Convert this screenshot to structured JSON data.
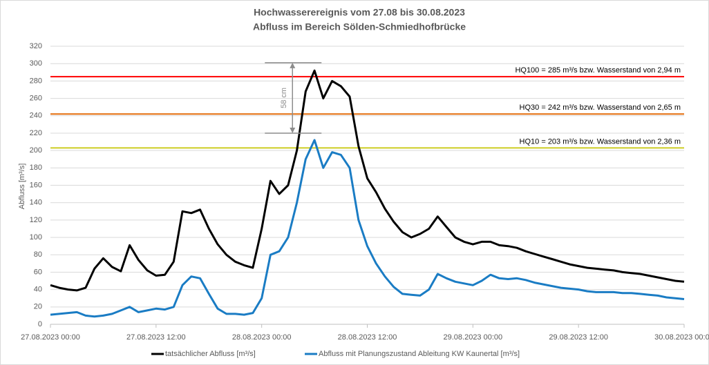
{
  "chart_data": {
    "type": "line",
    "title": "Hochwasserereignis vom 27.08 bis 30.08.2023",
    "subtitle": "Abfluss im Bereich Sölden-Schmiedhofbrücke",
    "ylabel": "Abfluss [m³/s]",
    "x": [
      "27.08.2023 00:00",
      "27.08.2023 01:00",
      "27.08.2023 02:00",
      "27.08.2023 03:00",
      "27.08.2023 04:00",
      "27.08.2023 05:00",
      "27.08.2023 06:00",
      "27.08.2023 07:00",
      "27.08.2023 08:00",
      "27.08.2023 09:00",
      "27.08.2023 10:00",
      "27.08.2023 11:00",
      "27.08.2023 12:00",
      "27.08.2023 13:00",
      "27.08.2023 14:00",
      "27.08.2023 15:00",
      "27.08.2023 16:00",
      "27.08.2023 17:00",
      "27.08.2023 18:00",
      "27.08.2023 19:00",
      "27.08.2023 20:00",
      "27.08.2023 21:00",
      "27.08.2023 22:00",
      "27.08.2023 23:00",
      "28.08.2023 00:00",
      "28.08.2023 01:00",
      "28.08.2023 02:00",
      "28.08.2023 03:00",
      "28.08.2023 04:00",
      "28.08.2023 05:00",
      "28.08.2023 06:00",
      "28.08.2023 07:00",
      "28.08.2023 08:00",
      "28.08.2023 09:00",
      "28.08.2023 10:00",
      "28.08.2023 11:00",
      "28.08.2023 12:00",
      "28.08.2023 13:00",
      "28.08.2023 14:00",
      "28.08.2023 15:00",
      "28.08.2023 16:00",
      "28.08.2023 17:00",
      "28.08.2023 18:00",
      "28.08.2023 19:00",
      "28.08.2023 20:00",
      "28.08.2023 21:00",
      "28.08.2023 22:00",
      "28.08.2023 23:00",
      "29.08.2023 00:00",
      "29.08.2023 01:00",
      "29.08.2023 02:00",
      "29.08.2023 03:00",
      "29.08.2023 04:00",
      "29.08.2023 05:00",
      "29.08.2023 06:00",
      "29.08.2023 07:00",
      "29.08.2023 08:00",
      "29.08.2023 09:00",
      "29.08.2023 10:00",
      "29.08.2023 11:00",
      "29.08.2023 12:00",
      "29.08.2023 13:00",
      "29.08.2023 14:00",
      "29.08.2023 15:00",
      "29.08.2023 16:00",
      "29.08.2023 17:00",
      "29.08.2023 18:00",
      "29.08.2023 19:00",
      "29.08.2023 20:00",
      "29.08.2023 21:00",
      "29.08.2023 22:00",
      "29.08.2023 23:00",
      "30.08.2023 00:00"
    ],
    "series": [
      {
        "name": "tatsächlicher Abfluss [m³/s]",
        "color": "#000000",
        "values": [
          45,
          42,
          40,
          39,
          42,
          64,
          76,
          66,
          61,
          91,
          74,
          62,
          56,
          57,
          72,
          130,
          128,
          132,
          110,
          92,
          80,
          72,
          68,
          65,
          110,
          165,
          150,
          160,
          200,
          268,
          292,
          260,
          280,
          274,
          262,
          205,
          168,
          152,
          133,
          118,
          106,
          100,
          104,
          110,
          124,
          112,
          100,
          95,
          92,
          95,
          95,
          91,
          90,
          88,
          84,
          81,
          78,
          75,
          72,
          69,
          67,
          65,
          64,
          63,
          62,
          60,
          59,
          58,
          56,
          54,
          52,
          50,
          49
        ]
      },
      {
        "name": "Abfluss mit Planungszustand Ableitung KW Kaunertal [m³/s]",
        "color": "#1a7cc4",
        "values": [
          11,
          12,
          13,
          14,
          10,
          9,
          10,
          12,
          16,
          20,
          14,
          16,
          18,
          17,
          20,
          45,
          55,
          53,
          35,
          18,
          12,
          12,
          11,
          13,
          30,
          80,
          84,
          100,
          140,
          190,
          212,
          180,
          198,
          195,
          180,
          120,
          90,
          70,
          55,
          43,
          35,
          34,
          33,
          40,
          58,
          53,
          49,
          47,
          45,
          50,
          57,
          53,
          52,
          53,
          51,
          48,
          46,
          44,
          42,
          41,
          40,
          38,
          37,
          37,
          37,
          36,
          36,
          35,
          34,
          33,
          31,
          30,
          29
        ]
      }
    ],
    "xlim": [
      "27.08.2023 00:00",
      "30.08.2023 00:00"
    ],
    "xticks": [
      "27.08.2023 00:00",
      "27.08.2023 12:00",
      "28.08.2023 00:00",
      "28.08.2023 12:00",
      "29.08.2023 00:00",
      "29.08.2023 12:00",
      "30.08.2023 00:00"
    ],
    "ylim": [
      0,
      320
    ],
    "yticks": [
      0,
      20,
      40,
      60,
      80,
      100,
      120,
      140,
      160,
      180,
      200,
      220,
      240,
      260,
      280,
      300,
      320
    ],
    "grid": true,
    "reference_lines": [
      {
        "value": 285,
        "label": "HQ100  = 285 m³/s bzw. Wasserstand von 2,94 m",
        "color": "#ff0000"
      },
      {
        "value": 242,
        "label": "HQ30  = 242 m³/s bzw. Wasserstand von 2,65 m",
        "color": "#e46c0a"
      },
      {
        "value": 203,
        "label": "HQ10  = 203 m³/s bzw. Wasserstand von 2,36 m",
        "color": "#cccc22"
      }
    ],
    "annotation": {
      "text": "58 cm",
      "x": "28.08.2023 03:30",
      "from": 220,
      "to": 301
    }
  }
}
